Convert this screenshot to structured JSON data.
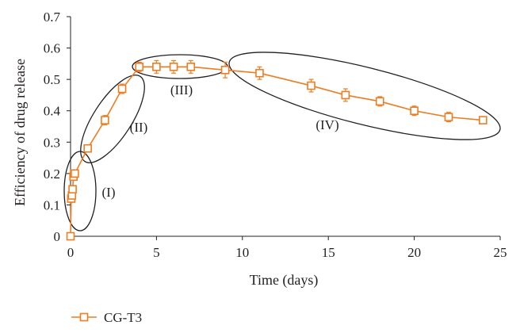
{
  "chart_data": {
    "type": "scatter",
    "xlabel": "Time (days)",
    "ylabel": "Efficiency of drug release",
    "xlim": [
      0,
      25
    ],
    "ylim": [
      0,
      0.7
    ],
    "x_ticks": [
      "0",
      "5",
      "10",
      "15",
      "20",
      "25"
    ],
    "y_ticks": [
      "0",
      "0.1",
      "0.2",
      "0.3",
      "0.4",
      "0.5",
      "0.6",
      "0.7"
    ],
    "grid": false,
    "legend_position": "bottom-left",
    "series": [
      {
        "name": "CG-T3",
        "color": "#ee7d22",
        "marker": "open-square",
        "x": [
          0,
          0.04,
          0.08,
          0.12,
          0.17,
          0.21,
          0.25,
          1,
          2,
          3,
          4,
          5,
          6,
          7,
          9,
          11,
          14,
          16,
          18,
          20,
          22,
          24
        ],
        "y": [
          0,
          0.12,
          0.13,
          0.15,
          0.19,
          0.2,
          0.2,
          0.28,
          0.37,
          0.47,
          0.54,
          0.54,
          0.54,
          0.54,
          0.53,
          0.52,
          0.48,
          0.45,
          0.43,
          0.4,
          0.38,
          0.37
        ],
        "error": [
          0,
          0.01,
          0.01,
          0.01,
          0.01,
          0.01,
          0.01,
          0.01,
          0.015,
          0.015,
          0.015,
          0.02,
          0.02,
          0.02,
          0.025,
          0.02,
          0.02,
          0.02,
          0.015,
          0.015,
          0.015,
          0.01
        ]
      }
    ],
    "annotations": [
      {
        "label": "(I)",
        "cx": 0.4,
        "cy": 0.15
      },
      {
        "label": "(II)",
        "cx": 2.4,
        "cy": 0.38
      },
      {
        "label": "(III)",
        "cx": 6.3,
        "cy": 0.545
      },
      {
        "label": "(IV)",
        "cx": 16.3,
        "cy": 0.44
      }
    ]
  }
}
